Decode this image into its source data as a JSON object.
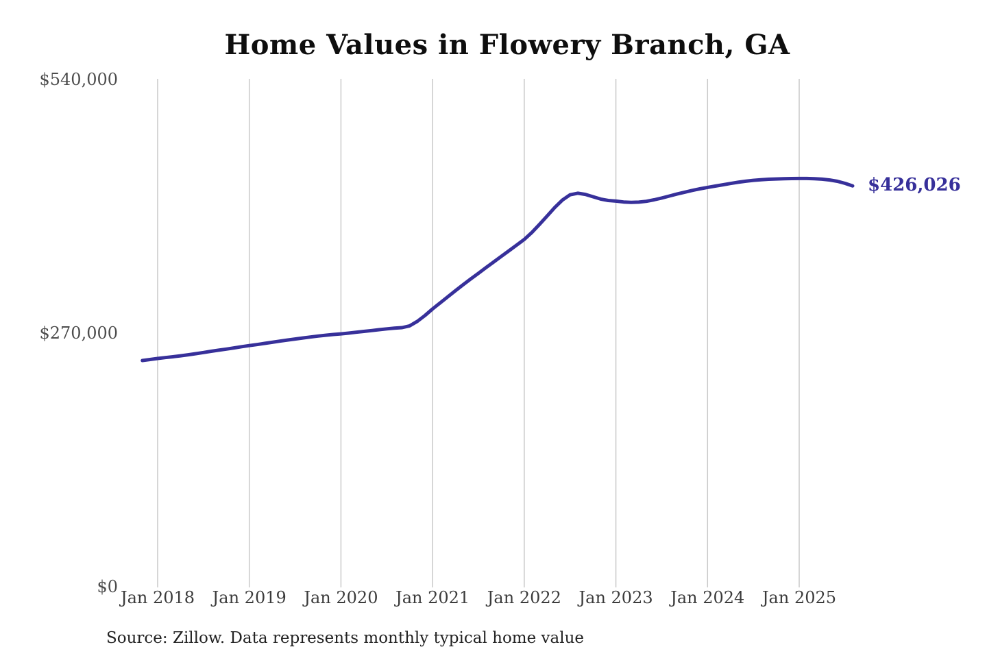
{
  "title": "Home Values in Flowery Branch, GA",
  "source_note": "Source: Zillow. Data represents monthly typical home value",
  "colors": {
    "line": "#37309a",
    "grid": "#c9c9c9",
    "title_text": "#0e0e0e",
    "axis_text": "#4d4d4d",
    "background": "#ffffff"
  },
  "chart_data": {
    "type": "line",
    "title": "Home Values in Flowery Branch, GA",
    "xlabel": "",
    "ylabel": "",
    "ylim": [
      0,
      540000
    ],
    "grid": "vertical-only",
    "legend": "none",
    "y_ticks": [
      {
        "label": "$0",
        "value": 0
      },
      {
        "label": "$270,000",
        "value": 270000
      },
      {
        "label": "$540,000",
        "value": 540000
      }
    ],
    "x_ticks": [
      {
        "label": "Jan 2018"
      },
      {
        "label": "Jan 2019"
      },
      {
        "label": "Jan 2020"
      },
      {
        "label": "Jan 2021"
      },
      {
        "label": "Jan 2022"
      },
      {
        "label": "Jan 2023"
      },
      {
        "label": "Jan 2024"
      },
      {
        "label": "Jan 2025"
      }
    ],
    "end_annotation": {
      "label": "$426,026",
      "value": 426026
    },
    "series": [
      {
        "name": "Monthly typical home value",
        "start_month": "2017-11",
        "frequency": "monthly",
        "values": [
          240100,
          241200,
          242300,
          243200,
          244100,
          245100,
          246200,
          247400,
          248600,
          249900,
          251100,
          252300,
          253500,
          254800,
          256000,
          257100,
          258300,
          259500,
          260700,
          261900,
          263000,
          264100,
          265100,
          266100,
          267000,
          267800,
          268500,
          269300,
          270200,
          271100,
          272000,
          272900,
          273800,
          274500,
          275100,
          277000,
          281800,
          288000,
          295000,
          301500,
          308000,
          314500,
          320800,
          327000,
          333000,
          339000,
          345000,
          351000,
          357000,
          363000,
          369000,
          376500,
          385000,
          394000,
          403000,
          411000,
          416500,
          418200,
          417000,
          414500,
          412000,
          410500,
          409800,
          408900,
          408400,
          408700,
          409600,
          411200,
          413100,
          415200,
          417300,
          419300,
          421200,
          422900,
          424400,
          425800,
          427200,
          428600,
          429900,
          431000,
          431900,
          432600,
          433100,
          433400,
          433600,
          433800,
          433900,
          433900,
          433700,
          433200,
          432300,
          430900,
          428700,
          426026
        ]
      }
    ]
  }
}
